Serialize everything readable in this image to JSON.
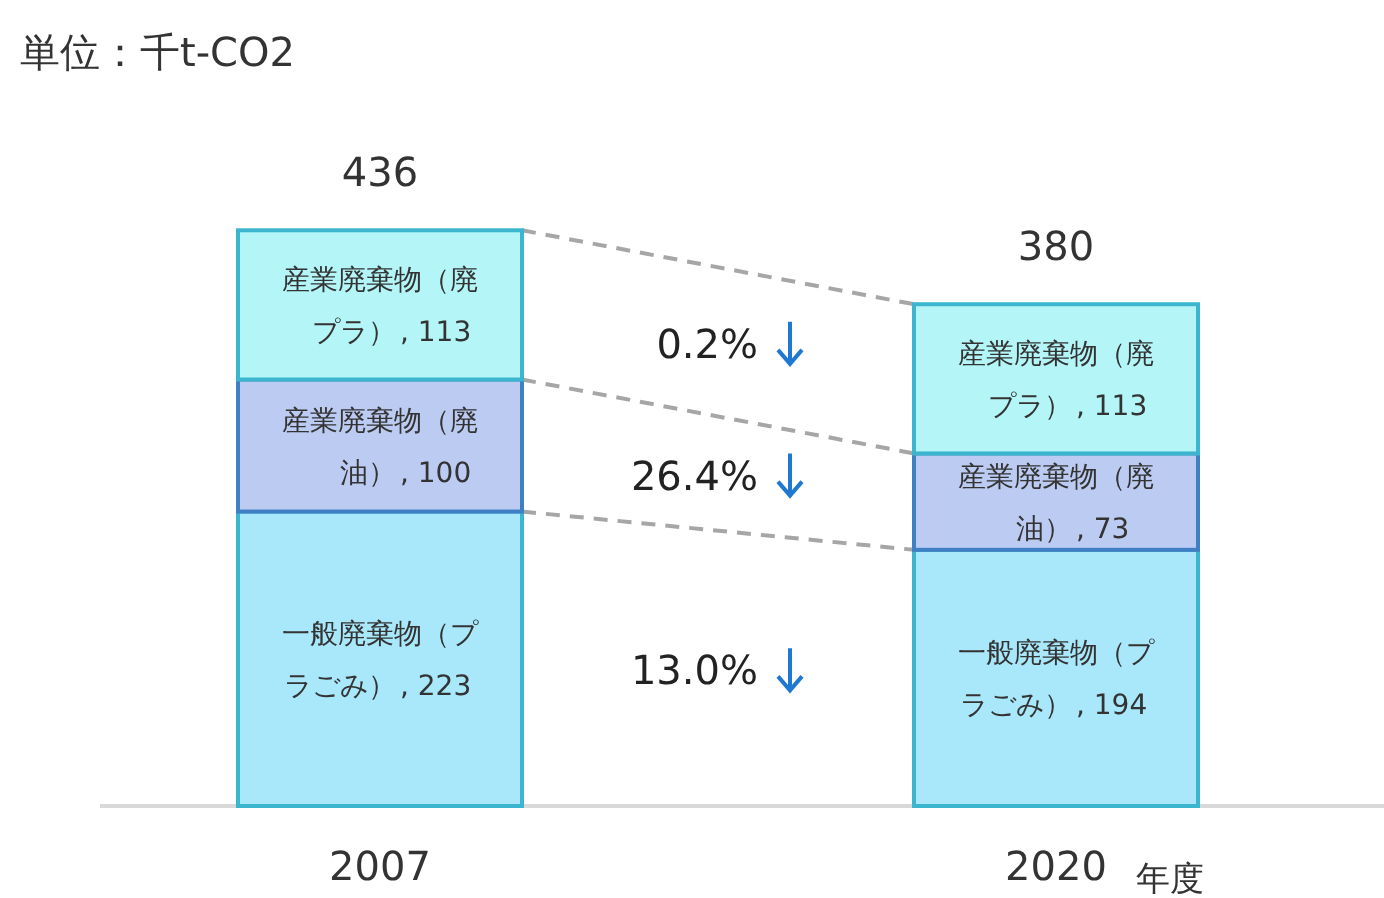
{
  "chart_data": {
    "type": "bar",
    "stacked": true,
    "title": "単位：千t-CO2",
    "xlabel": "年度",
    "categories": [
      "2007",
      "2020"
    ],
    "series": [
      {
        "name": "一般廃棄物（プラごみ）",
        "color": "#a8e8fa",
        "values": [
          223,
          194
        ],
        "value_labels": [
          ", 223",
          ", 194"
        ]
      },
      {
        "name": "産業廃棄物（廃油）",
        "color": "#bccbf2",
        "values": [
          100,
          73
        ],
        "value_labels": [
          ", 100",
          ", 73"
        ]
      },
      {
        "name": "産業廃棄物（廃プラ）",
        "color": "#b4f6f8",
        "values": [
          113,
          113
        ],
        "value_labels": [
          ", 113",
          ", 113"
        ]
      }
    ],
    "totals": [
      "436",
      "380"
    ],
    "annotations": [
      "13.0%",
      "26.4%",
      "0.2%"
    ]
  }
}
